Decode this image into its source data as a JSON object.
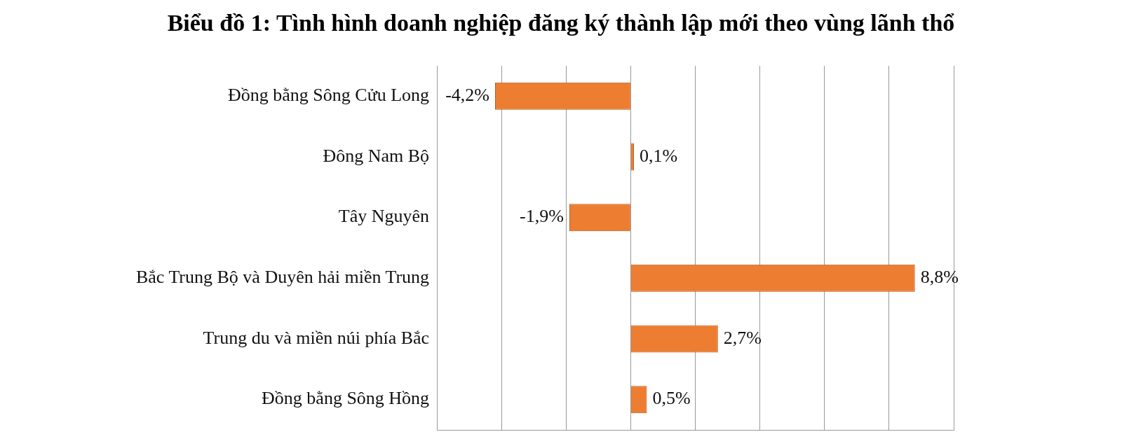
{
  "chart_data": {
    "type": "bar",
    "title": "Biểu đồ 1: Tình hình doanh nghiệp đăng ký thành lập mới theo vùng lãnh thổ",
    "orientation": "horizontal",
    "categories": [
      "Đồng bằng Sông Cửu Long",
      "Đông Nam Bộ",
      "Tây Nguyên",
      "Bắc Trung Bộ và Duyên hải miền Trung",
      "Trung du và miền núi phía Bắc",
      "Đồng bằng Sông Hồng"
    ],
    "values": [
      -4.2,
      0.1,
      -1.9,
      8.8,
      2.7,
      0.5
    ],
    "value_labels": [
      "-4,2%",
      "0,1%",
      "-1,9%",
      "8,8%",
      "2,7%",
      "0,5%"
    ],
    "color": "#ed7d31",
    "xlim": [
      -6,
      10
    ],
    "xticks": [
      {
        "value": -6,
        "label": null
      },
      {
        "value": -4,
        "label": null
      },
      {
        "value": -2,
        "label": null
      },
      {
        "value": 0,
        "label": null
      },
      {
        "value": 2,
        "label": null
      },
      {
        "value": 4,
        "label": null
      },
      {
        "value": 6,
        "label": null
      },
      {
        "value": 8,
        "label": null
      },
      {
        "value": 10,
        "label": null
      }
    ],
    "grid": "x",
    "tick_labels": "y"
  }
}
